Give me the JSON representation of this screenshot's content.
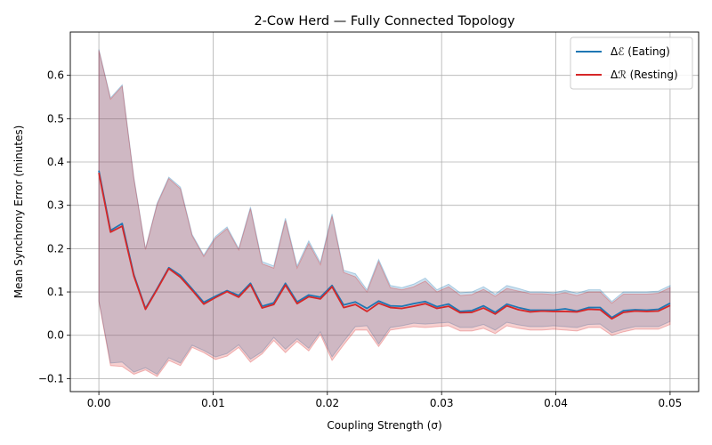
{
  "chart_data": {
    "type": "line",
    "title": "2-Cow Herd — Fully Connected Topology",
    "xlabel": "Coupling Strength (σ)",
    "ylabel": "Mean Synchrony Error (minutes)",
    "xlim": [
      -0.0025,
      0.0525
    ],
    "ylim": [
      -0.13,
      0.7
    ],
    "xticks": [
      "0.00",
      "0.01",
      "0.02",
      "0.03",
      "0.04",
      "0.05"
    ],
    "xtick_values": [
      0.0,
      0.01,
      0.02,
      0.03,
      0.04,
      0.05
    ],
    "yticks": [
      "−0.1",
      "0.0",
      "0.1",
      "0.2",
      "0.3",
      "0.4",
      "0.5",
      "0.6"
    ],
    "ytick_values": [
      -0.1,
      0.0,
      0.1,
      0.2,
      0.3,
      0.4,
      0.5,
      0.6
    ],
    "grid": true,
    "legend": "top-right",
    "x": [
      0.0,
      0.00102,
      0.00204,
      0.00306,
      0.00408,
      0.0051,
      0.00612,
      0.00714,
      0.00816,
      0.00918,
      0.0102,
      0.01122,
      0.01224,
      0.01327,
      0.01429,
      0.01531,
      0.01633,
      0.01735,
      0.01837,
      0.01939,
      0.02041,
      0.02143,
      0.02245,
      0.02347,
      0.02449,
      0.02551,
      0.02653,
      0.02755,
      0.02857,
      0.02959,
      0.03061,
      0.03163,
      0.03265,
      0.03367,
      0.03469,
      0.03571,
      0.03673,
      0.03776,
      0.03878,
      0.0398,
      0.04082,
      0.04184,
      0.04286,
      0.04388,
      0.0449,
      0.04592,
      0.04694,
      0.04796,
      0.04898,
      0.05
    ],
    "series": [
      {
        "name": "Δℰ (Eating)",
        "color": "#1f77b4",
        "values": [
          0.38,
          0.242,
          0.258,
          0.14,
          0.062,
          0.108,
          0.156,
          0.138,
          0.107,
          0.076,
          0.09,
          0.103,
          0.092,
          0.12,
          0.067,
          0.075,
          0.12,
          0.077,
          0.093,
          0.088,
          0.115,
          0.07,
          0.077,
          0.062,
          0.079,
          0.068,
          0.067,
          0.073,
          0.078,
          0.066,
          0.072,
          0.055,
          0.057,
          0.068,
          0.053,
          0.072,
          0.064,
          0.058,
          0.058,
          0.058,
          0.061,
          0.056,
          0.064,
          0.064,
          0.041,
          0.057,
          0.059,
          0.058,
          0.06,
          0.074
        ],
        "band_low": [
          0.08,
          -0.064,
          -0.062,
          -0.085,
          -0.075,
          -0.09,
          -0.052,
          -0.064,
          -0.023,
          -0.035,
          -0.05,
          -0.042,
          -0.022,
          -0.055,
          -0.038,
          -0.005,
          -0.032,
          -0.008,
          -0.03,
          0.008,
          -0.05,
          -0.014,
          0.02,
          0.022,
          -0.02,
          0.018,
          0.022,
          0.028,
          0.026,
          0.028,
          0.03,
          0.018,
          0.018,
          0.025,
          0.012,
          0.03,
          0.024,
          0.02,
          0.02,
          0.022,
          0.02,
          0.018,
          0.025,
          0.026,
          0.006,
          0.014,
          0.02,
          0.02,
          0.02,
          0.032
        ],
        "band_high": [
          0.66,
          0.548,
          0.578,
          0.365,
          0.2,
          0.305,
          0.365,
          0.342,
          0.233,
          0.185,
          0.228,
          0.25,
          0.2,
          0.296,
          0.17,
          0.16,
          0.27,
          0.16,
          0.218,
          0.168,
          0.28,
          0.15,
          0.142,
          0.105,
          0.175,
          0.115,
          0.11,
          0.118,
          0.132,
          0.105,
          0.118,
          0.098,
          0.1,
          0.112,
          0.095,
          0.115,
          0.108,
          0.1,
          0.1,
          0.098,
          0.104,
          0.097,
          0.105,
          0.105,
          0.078,
          0.1,
          0.1,
          0.1,
          0.102,
          0.115
        ]
      },
      {
        "name": "Δℛ (Resting)",
        "color": "#d62728",
        "values": [
          0.375,
          0.238,
          0.252,
          0.137,
          0.06,
          0.106,
          0.154,
          0.134,
          0.104,
          0.072,
          0.087,
          0.101,
          0.088,
          0.117,
          0.063,
          0.071,
          0.116,
          0.073,
          0.089,
          0.084,
          0.112,
          0.064,
          0.071,
          0.055,
          0.074,
          0.064,
          0.062,
          0.067,
          0.073,
          0.062,
          0.067,
          0.052,
          0.053,
          0.063,
          0.049,
          0.068,
          0.059,
          0.054,
          0.056,
          0.055,
          0.055,
          0.054,
          0.06,
          0.059,
          0.038,
          0.053,
          0.056,
          0.055,
          0.056,
          0.069
        ],
        "band_low": [
          0.078,
          -0.07,
          -0.072,
          -0.09,
          -0.08,
          -0.095,
          -0.058,
          -0.07,
          -0.028,
          -0.04,
          -0.056,
          -0.048,
          -0.028,
          -0.062,
          -0.043,
          -0.012,
          -0.04,
          -0.014,
          -0.036,
          0.002,
          -0.058,
          -0.022,
          0.012,
          0.012,
          -0.026,
          0.012,
          0.016,
          0.02,
          0.018,
          0.02,
          0.022,
          0.01,
          0.01,
          0.016,
          0.004,
          0.022,
          0.016,
          0.012,
          0.012,
          0.014,
          0.012,
          0.01,
          0.018,
          0.018,
          0.0,
          0.008,
          0.014,
          0.014,
          0.014,
          0.025
        ],
        "band_high": [
          0.658,
          0.545,
          0.575,
          0.362,
          0.198,
          0.302,
          0.362,
          0.338,
          0.23,
          0.182,
          0.224,
          0.246,
          0.197,
          0.292,
          0.165,
          0.155,
          0.265,
          0.155,
          0.212,
          0.163,
          0.275,
          0.145,
          0.135,
          0.1,
          0.17,
          0.11,
          0.105,
          0.112,
          0.125,
          0.1,
          0.112,
          0.092,
          0.094,
          0.106,
          0.09,
          0.108,
          0.102,
          0.096,
          0.096,
          0.094,
          0.098,
          0.092,
          0.1,
          0.1,
          0.074,
          0.095,
          0.095,
          0.095,
          0.097,
          0.11
        ]
      }
    ]
  }
}
